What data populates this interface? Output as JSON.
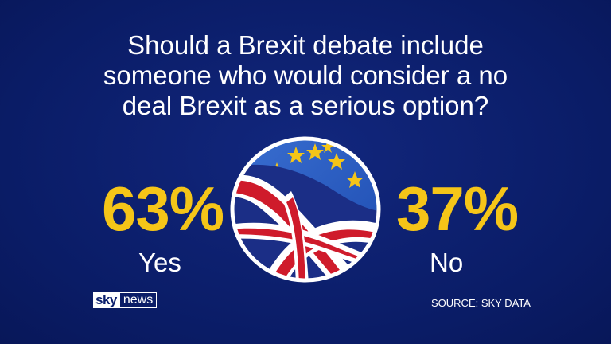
{
  "question": {
    "lines": [
      "Should a Brexit debate include",
      "someone who would consider a no",
      "deal Brexit as a serious option?"
    ]
  },
  "chart_data": {
    "type": "pie",
    "title": "Should a Brexit debate include someone who would consider a no deal Brexit as a serious option?",
    "categories": [
      "Yes",
      "No"
    ],
    "values": [
      63,
      37
    ],
    "value_labels": [
      "63%",
      "37%"
    ],
    "colors": {
      "value": "#f5c518",
      "label": "#ffffff",
      "background": "#0b1f6e"
    }
  },
  "branding": {
    "logo_sky": "sky",
    "logo_news": "news",
    "source": "SOURCE: SKY DATA"
  },
  "icons": {
    "flag": "eu-uk-flag-icon"
  }
}
